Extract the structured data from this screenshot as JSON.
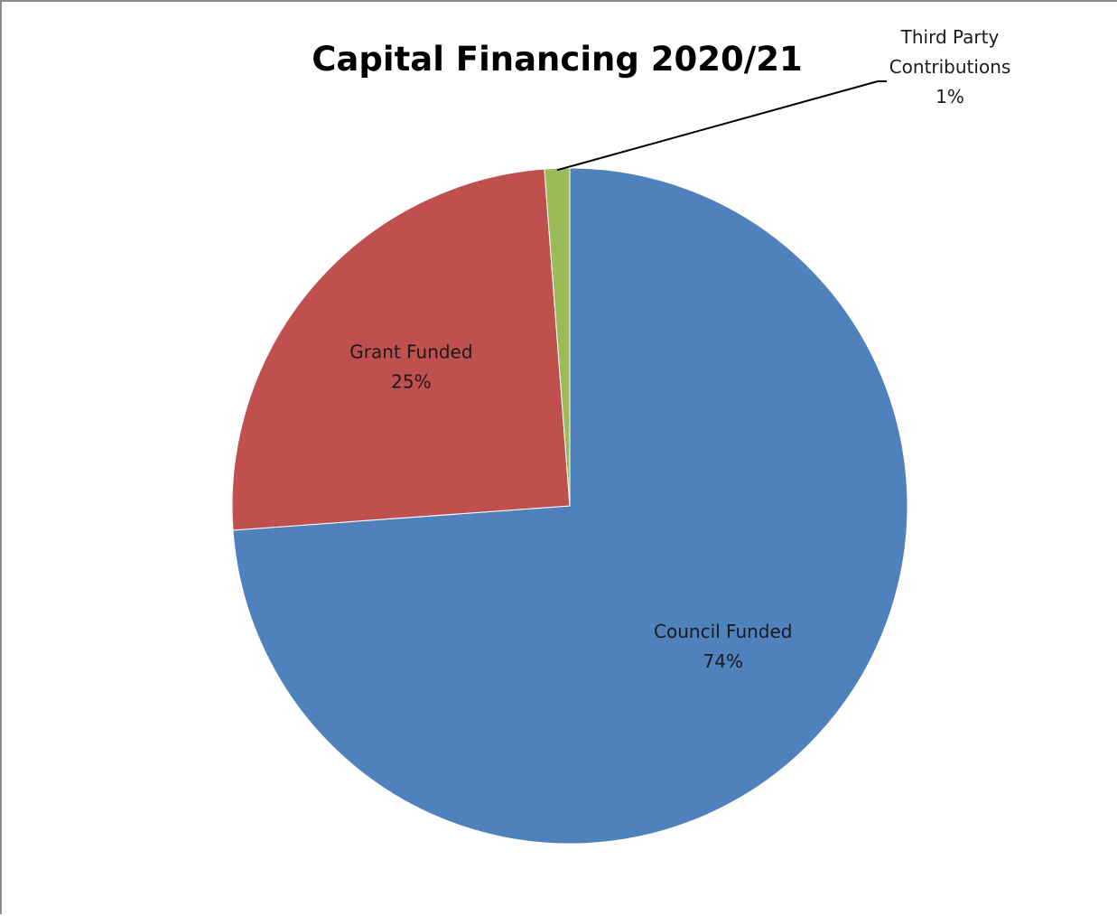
{
  "chart_data": {
    "type": "pie",
    "title": "Capital Financing 2020/21",
    "slices": [
      {
        "name": "Council Funded",
        "value": 74,
        "percent_label": "74%",
        "color": "#4F81BD"
      },
      {
        "name": "Grant Funded",
        "value": 25,
        "percent_label": "25%",
        "color": "#C0504D"
      },
      {
        "name": "Third Party Contributions",
        "name_lines": [
          "Third Party",
          "Contributions"
        ],
        "value": 1.2,
        "percent_label": "1%",
        "color": "#9BBB59"
      }
    ],
    "start_angle_deg": 0,
    "direction": "clockwise",
    "legend": "none",
    "data_labels": "name-and-percent"
  }
}
